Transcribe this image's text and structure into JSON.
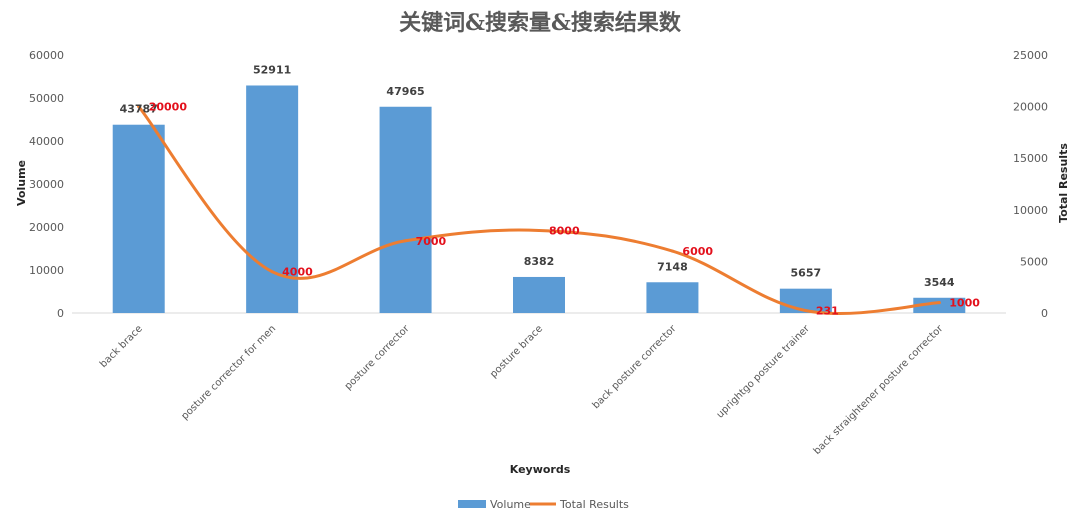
{
  "chart_data": {
    "type": "bar",
    "title": "关键词&搜索量&搜索结果数",
    "xlabel": "Keywords",
    "ylabel": "Volume",
    "y2label": "Total Results",
    "categories": [
      "back brace",
      "posture corrector for men",
      "posture corrector",
      "posture brace",
      "back posture corrector",
      "uprightgo posture trainer",
      "back straightener posture corrector"
    ],
    "series": [
      {
        "name": "Volume",
        "type": "bar",
        "axis": "left",
        "color": "#5b9bd5",
        "values": [
          43787,
          52911,
          47965,
          8382,
          7148,
          5657,
          3544
        ]
      },
      {
        "name": "Total Results",
        "type": "line",
        "axis": "right",
        "color": "#ed7d31",
        "values": [
          20000,
          4000,
          7000,
          8000,
          6000,
          231,
          1000
        ]
      }
    ],
    "ylim": [
      0,
      60000
    ],
    "y_ticks": [
      0,
      10000,
      20000,
      30000,
      40000,
      50000,
      60000
    ],
    "y2lim": [
      0,
      25000
    ],
    "y2_ticks": [
      0,
      5000,
      10000,
      15000,
      20000,
      25000
    ],
    "legend_position": "bottom",
    "grid": false
  }
}
